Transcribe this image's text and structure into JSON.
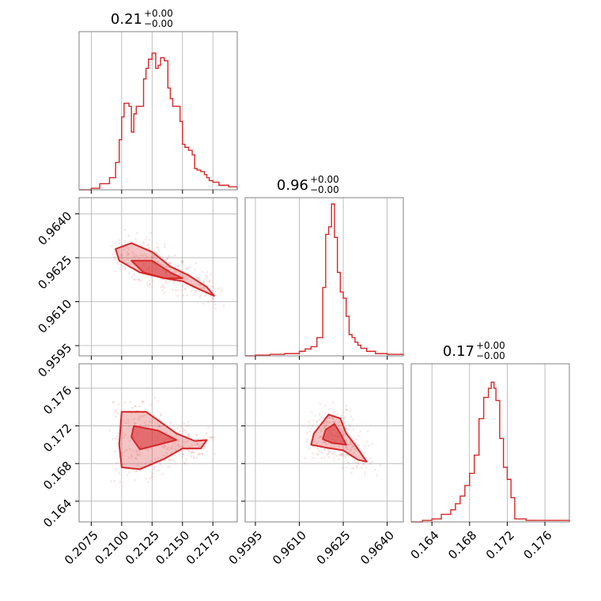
{
  "chart_data": {
    "type": "corner",
    "color": "#d62728",
    "grid": true,
    "parameters": [
      {
        "title_value": "0.21",
        "title_plus": "+0.00",
        "title_minus": "−0.00",
        "range": [
          0.2065,
          0.2195
        ],
        "ticks": [
          0.2075,
          0.21,
          0.2125,
          0.215,
          0.2175
        ],
        "tick_labels": [
          "0.2075",
          "0.2100",
          "0.2125",
          "0.2150",
          "0.2175"
        ]
      },
      {
        "title_value": "0.96",
        "title_plus": "+0.00",
        "title_minus": "−0.00",
        "range": [
          0.95915,
          0.96455
        ],
        "ticks": [
          0.9595,
          0.961,
          0.9625,
          0.964
        ],
        "tick_labels": [
          "0.9595",
          "0.9610",
          "0.9625",
          "0.9640"
        ]
      },
      {
        "title_value": "0.17",
        "title_plus": "+0.00",
        "title_minus": "−0.00",
        "range": [
          0.1618,
          0.1786
        ],
        "ticks": [
          0.164,
          0.168,
          0.172,
          0.176
        ],
        "tick_labels": [
          "0.164",
          "0.168",
          "0.172",
          "0.176"
        ]
      }
    ],
    "histograms": [
      {
        "param": 0,
        "bins": [
          [
            0.2065,
            0
          ],
          [
            0.2075,
            0.01
          ],
          [
            0.2082,
            0.04
          ],
          [
            0.209,
            0.08
          ],
          [
            0.2095,
            0.18
          ],
          [
            0.2098,
            0.33
          ],
          [
            0.21,
            0.48
          ],
          [
            0.2102,
            0.57
          ],
          [
            0.2106,
            0.55
          ],
          [
            0.2108,
            0.38
          ],
          [
            0.211,
            0.5
          ],
          [
            0.2112,
            0.55
          ],
          [
            0.2115,
            0.55
          ],
          [
            0.2118,
            0.73
          ],
          [
            0.212,
            0.8
          ],
          [
            0.2122,
            0.86
          ],
          [
            0.2125,
            0.9
          ],
          [
            0.2128,
            0.8
          ],
          [
            0.213,
            0.82
          ],
          [
            0.2132,
            0.87
          ],
          [
            0.2135,
            0.85
          ],
          [
            0.2138,
            0.67
          ],
          [
            0.214,
            0.6
          ],
          [
            0.2142,
            0.55
          ],
          [
            0.2145,
            0.55
          ],
          [
            0.2148,
            0.45
          ],
          [
            0.215,
            0.3
          ],
          [
            0.2152,
            0.28
          ],
          [
            0.2155,
            0.26
          ],
          [
            0.2158,
            0.23
          ],
          [
            0.216,
            0.14
          ],
          [
            0.2162,
            0.13
          ],
          [
            0.2165,
            0.12
          ],
          [
            0.2168,
            0.1
          ],
          [
            0.217,
            0.08
          ],
          [
            0.2172,
            0.06
          ],
          [
            0.2175,
            0.05
          ],
          [
            0.218,
            0.03
          ],
          [
            0.2188,
            0.02
          ],
          [
            0.2195,
            0
          ]
        ]
      },
      {
        "param": 1,
        "bins": [
          [
            0.95915,
            0
          ],
          [
            0.9595,
            0.005
          ],
          [
            0.96,
            0.01
          ],
          [
            0.9605,
            0.015
          ],
          [
            0.961,
            0.03
          ],
          [
            0.9612,
            0.045
          ],
          [
            0.9614,
            0.06
          ],
          [
            0.9616,
            0.12
          ],
          [
            0.9618,
            0.45
          ],
          [
            0.9619,
            0.8
          ],
          [
            0.962,
            0.85
          ],
          [
            0.9621,
            1.0
          ],
          [
            0.9622,
            0.78
          ],
          [
            0.9623,
            0.55
          ],
          [
            0.9624,
            0.42
          ],
          [
            0.9625,
            0.38
          ],
          [
            0.9626,
            0.26
          ],
          [
            0.9627,
            0.14
          ],
          [
            0.9628,
            0.12
          ],
          [
            0.9629,
            0.09
          ],
          [
            0.963,
            0.07
          ],
          [
            0.9631,
            0.05
          ],
          [
            0.9633,
            0.03
          ],
          [
            0.9636,
            0.015
          ],
          [
            0.964,
            0.01
          ],
          [
            0.96455,
            0
          ]
        ]
      },
      {
        "param": 2,
        "bins": [
          [
            0.1618,
            0
          ],
          [
            0.163,
            0.01
          ],
          [
            0.164,
            0.02
          ],
          [
            0.165,
            0.05
          ],
          [
            0.166,
            0.08
          ],
          [
            0.1665,
            0.12
          ],
          [
            0.167,
            0.17
          ],
          [
            0.1675,
            0.24
          ],
          [
            0.168,
            0.32
          ],
          [
            0.1685,
            0.44
          ],
          [
            0.169,
            0.68
          ],
          [
            0.1695,
            0.82
          ],
          [
            0.17,
            0.88
          ],
          [
            0.1703,
            0.92
          ],
          [
            0.1706,
            0.88
          ],
          [
            0.1708,
            0.8
          ],
          [
            0.1712,
            0.55
          ],
          [
            0.1716,
            0.36
          ],
          [
            0.172,
            0.28
          ],
          [
            0.1724,
            0.16
          ],
          [
            0.1728,
            0.02
          ],
          [
            0.174,
            0.01
          ],
          [
            0.1786,
            0
          ]
        ]
      }
    ],
    "contours_2d": [
      {
        "x_param": 0,
        "y_param": 1,
        "points": [
          [
            0.2095,
            0.9628
          ],
          [
            0.2108,
            0.963
          ],
          [
            0.2125,
            0.9627
          ],
          [
            0.214,
            0.9622
          ],
          [
            0.2155,
            0.9619
          ],
          [
            0.217,
            0.9615
          ],
          [
            0.2176,
            0.9612
          ],
          [
            0.2165,
            0.9614
          ],
          [
            0.215,
            0.9617
          ],
          [
            0.2135,
            0.9618
          ],
          [
            0.2115,
            0.962
          ],
          [
            0.2098,
            0.9624
          ]
        ],
        "inner": [
          [
            0.2108,
            0.9624
          ],
          [
            0.2125,
            0.9624
          ],
          [
            0.214,
            0.962
          ],
          [
            0.215,
            0.9618
          ],
          [
            0.2135,
            0.9618
          ],
          [
            0.2118,
            0.962
          ]
        ]
      },
      {
        "x_param": 0,
        "y_param": 2,
        "points": [
          [
            0.21,
            0.1735
          ],
          [
            0.212,
            0.1735
          ],
          [
            0.2145,
            0.1712
          ],
          [
            0.216,
            0.1704
          ],
          [
            0.217,
            0.1705
          ],
          [
            0.2165,
            0.1696
          ],
          [
            0.215,
            0.1696
          ],
          [
            0.2135,
            0.1685
          ],
          [
            0.2115,
            0.1674
          ],
          [
            0.21,
            0.1676
          ],
          [
            0.2098,
            0.17
          ]
        ],
        "inner": [
          [
            0.211,
            0.172
          ],
          [
            0.213,
            0.1715
          ],
          [
            0.2145,
            0.1705
          ],
          [
            0.213,
            0.17
          ],
          [
            0.2115,
            0.1695
          ],
          [
            0.2108,
            0.1708
          ]
        ]
      },
      {
        "x_param": 1,
        "y_param": 2,
        "points": [
          [
            0.9617,
            0.172
          ],
          [
            0.962,
            0.1732
          ],
          [
            0.9624,
            0.1728
          ],
          [
            0.9626,
            0.1712
          ],
          [
            0.9629,
            0.17
          ],
          [
            0.9633,
            0.1682
          ],
          [
            0.963,
            0.1684
          ],
          [
            0.9625,
            0.1694
          ],
          [
            0.9619,
            0.1697
          ],
          [
            0.9614,
            0.17
          ],
          [
            0.9615,
            0.1712
          ]
        ],
        "inner": [
          [
            0.9619,
            0.1716
          ],
          [
            0.9622,
            0.1722
          ],
          [
            0.9624,
            0.1712
          ],
          [
            0.9626,
            0.17
          ],
          [
            0.9621,
            0.1702
          ],
          [
            0.9618,
            0.1706
          ]
        ]
      }
    ]
  }
}
